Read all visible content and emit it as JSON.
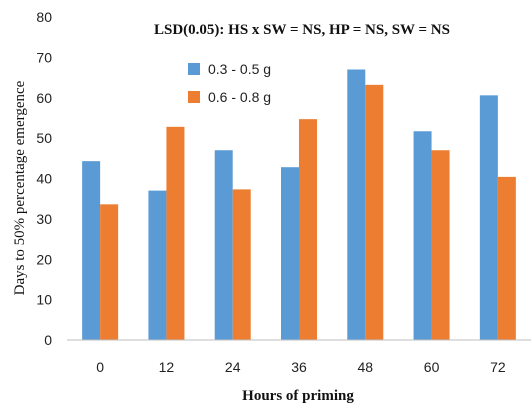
{
  "chart_data": {
    "type": "bar",
    "title": "LSD(0.05): HS x SW = NS, HP = NS, SW = NS",
    "xlabel": "Hours of priming",
    "ylabel": "Days to 50% percentage emergence",
    "categories": [
      "0",
      "12",
      "24",
      "36",
      "48",
      "60",
      "72"
    ],
    "series": [
      {
        "name": "0.3 - 0.5 g",
        "color": "#5b9bd5",
        "values": [
          44.3,
          37,
          47,
          42.8,
          67,
          51.7,
          60.6
        ]
      },
      {
        "name": "0.6 - 0.8 g",
        "color": "#ed7d31",
        "values": [
          33.6,
          52.8,
          37.3,
          54.7,
          63.2,
          47,
          40.4
        ]
      }
    ],
    "ylim": [
      0,
      80
    ],
    "yticks": [
      0,
      10,
      20,
      30,
      40,
      50,
      60,
      70,
      80
    ],
    "grid": false,
    "legend_position": "top-center"
  }
}
